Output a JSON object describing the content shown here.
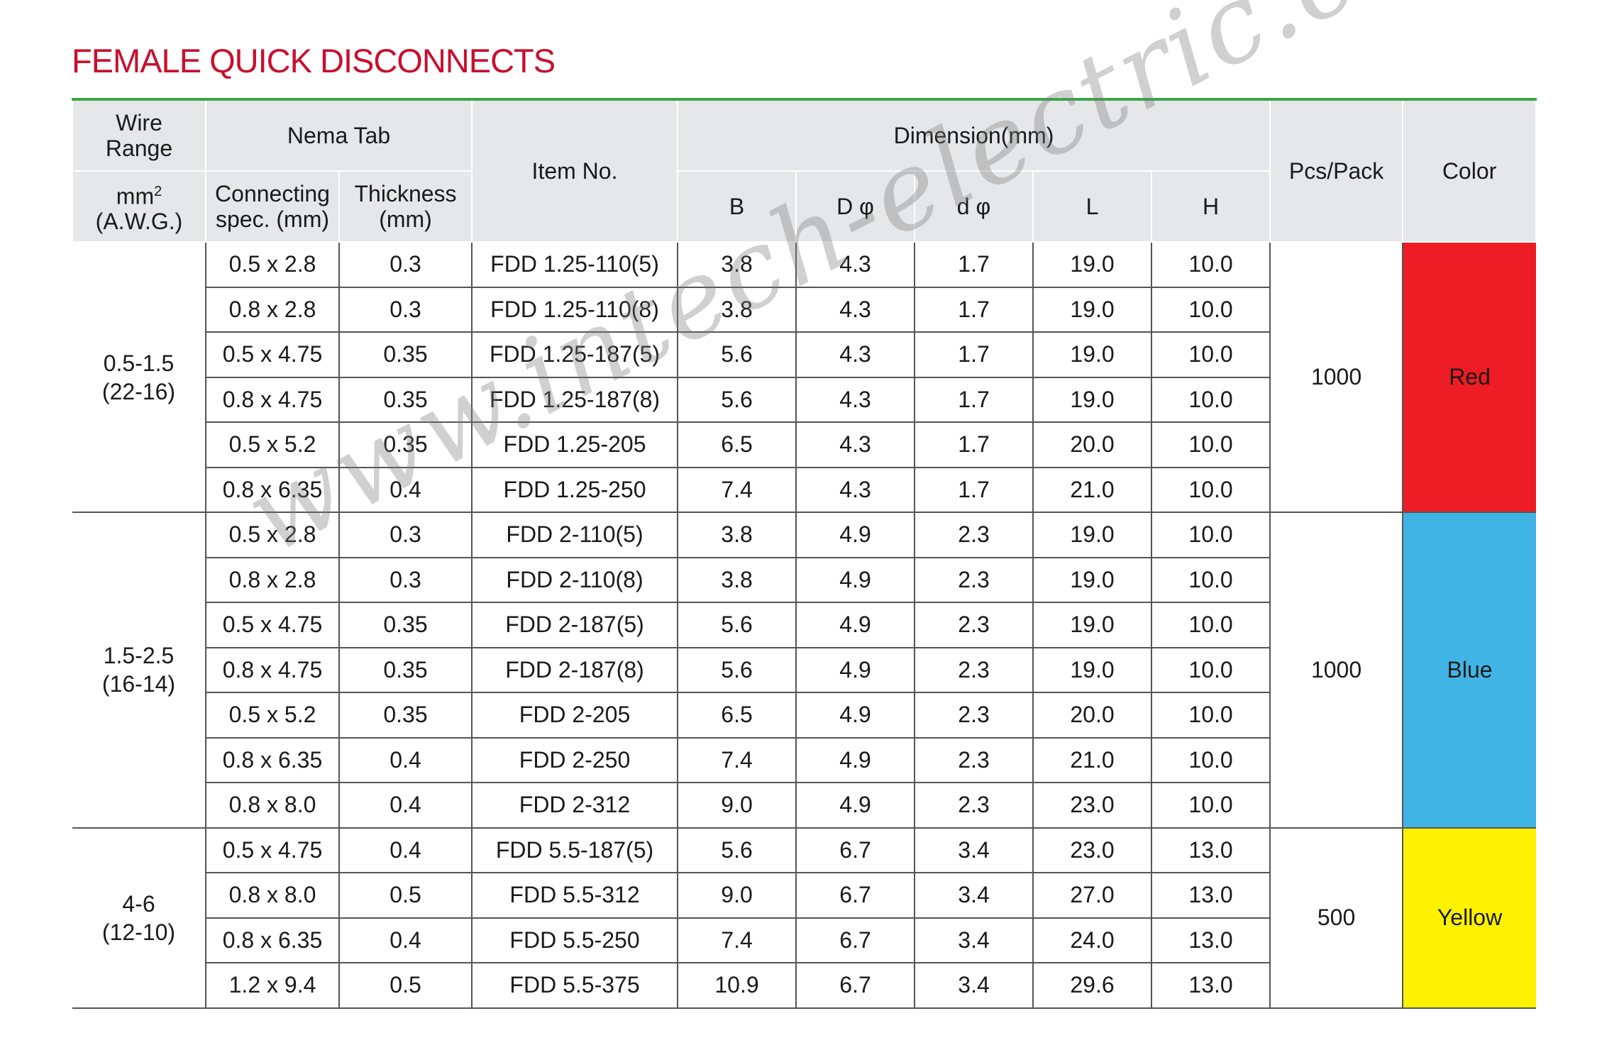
{
  "title": "FEMALE QUICK DISCONNECTS",
  "headers": {
    "wire_range": "Wire Range",
    "nema_tab": "Nema Tab",
    "item_no": "Item No.",
    "dimension": "Dimension(mm)",
    "pcs_pack": "Pcs/Pack",
    "color": "Color",
    "units_mm": "mm",
    "units_sup": "2",
    "units_awg": "(A.W.G.)",
    "connecting": "Connecting spec. (mm)",
    "thickness": "Thickness (mm)",
    "B": "B",
    "D": "D φ",
    "d": "d φ",
    "L": "L",
    "H": "H"
  },
  "groups": [
    {
      "wire_range": "0.5-1.5",
      "awg": "(22-16)",
      "pcs_pack": "1000",
      "color_label": "Red",
      "color_hex": "#ee1c25",
      "rows": [
        {
          "conn": "0.5 x 2.8",
          "thick": "0.3",
          "item": "FDD 1.25-110(5)",
          "B": "3.8",
          "D": "4.3",
          "d": "1.7",
          "L": "19.0",
          "H": "10.0"
        },
        {
          "conn": "0.8 x 2.8",
          "thick": "0.3",
          "item": "FDD 1.25-110(8)",
          "B": "3.8",
          "D": "4.3",
          "d": "1.7",
          "L": "19.0",
          "H": "10.0"
        },
        {
          "conn": "0.5 x 4.75",
          "thick": "0.35",
          "item": "FDD 1.25-187(5)",
          "B": "5.6",
          "D": "4.3",
          "d": "1.7",
          "L": "19.0",
          "H": "10.0"
        },
        {
          "conn": "0.8 x 4.75",
          "thick": "0.35",
          "item": "FDD 1.25-187(8)",
          "B": "5.6",
          "D": "4.3",
          "d": "1.7",
          "L": "19.0",
          "H": "10.0"
        },
        {
          "conn": "0.5 x 5.2",
          "thick": "0.35",
          "item": "FDD 1.25-205",
          "B": "6.5",
          "D": "4.3",
          "d": "1.7",
          "L": "20.0",
          "H": "10.0"
        },
        {
          "conn": "0.8 x 6.35",
          "thick": "0.4",
          "item": "FDD 1.25-250",
          "B": "7.4",
          "D": "4.3",
          "d": "1.7",
          "L": "21.0",
          "H": "10.0"
        }
      ]
    },
    {
      "wire_range": "1.5-2.5",
      "awg": "(16-14)",
      "pcs_pack": "1000",
      "color_label": "Blue",
      "color_hex": "#40b4e5",
      "rows": [
        {
          "conn": "0.5 x 2.8",
          "thick": "0.3",
          "item": "FDD 2-110(5)",
          "B": "3.8",
          "D": "4.9",
          "d": "2.3",
          "L": "19.0",
          "H": "10.0"
        },
        {
          "conn": "0.8 x 2.8",
          "thick": "0.3",
          "item": "FDD 2-110(8)",
          "B": "3.8",
          "D": "4.9",
          "d": "2.3",
          "L": "19.0",
          "H": "10.0"
        },
        {
          "conn": "0.5 x 4.75",
          "thick": "0.35",
          "item": "FDD 2-187(5)",
          "B": "5.6",
          "D": "4.9",
          "d": "2.3",
          "L": "19.0",
          "H": "10.0"
        },
        {
          "conn": "0.8 x 4.75",
          "thick": "0.35",
          "item": "FDD 2-187(8)",
          "B": "5.6",
          "D": "4.9",
          "d": "2.3",
          "L": "19.0",
          "H": "10.0"
        },
        {
          "conn": "0.5 x 5.2",
          "thick": "0.35",
          "item": "FDD 2-205",
          "B": "6.5",
          "D": "4.9",
          "d": "2.3",
          "L": "20.0",
          "H": "10.0"
        },
        {
          "conn": "0.8 x 6.35",
          "thick": "0.4",
          "item": "FDD 2-250",
          "B": "7.4",
          "D": "4.9",
          "d": "2.3",
          "L": "21.0",
          "H": "10.0"
        },
        {
          "conn": "0.8 x 8.0",
          "thick": "0.4",
          "item": "FDD 2-312",
          "B": "9.0",
          "D": "4.9",
          "d": "2.3",
          "L": "23.0",
          "H": "10.0"
        }
      ]
    },
    {
      "wire_range": "4-6",
      "awg": "(12-10)",
      "pcs_pack": "500",
      "color_label": "Yellow",
      "color_hex": "#fff200",
      "rows": [
        {
          "conn": "0.5 x 4.75",
          "thick": "0.4",
          "item": "FDD 5.5-187(5)",
          "B": "5.6",
          "D": "6.7",
          "d": "3.4",
          "L": "23.0",
          "H": "13.0"
        },
        {
          "conn": "0.8 x 8.0",
          "thick": "0.5",
          "item": "FDD 5.5-312",
          "B": "9.0",
          "D": "6.7",
          "d": "3.4",
          "L": "27.0",
          "H": "13.0"
        },
        {
          "conn": "0.8 x 6.35",
          "thick": "0.4",
          "item": "FDD 5.5-250",
          "B": "7.4",
          "D": "6.7",
          "d": "3.4",
          "L": "24.0",
          "H": "13.0"
        },
        {
          "conn": "1.2 x 9.4",
          "thick": "0.5",
          "item": "FDD 5.5-375",
          "B": "10.9",
          "D": "6.7",
          "d": "3.4",
          "L": "29.6",
          "H": "13.0"
        }
      ]
    }
  ],
  "watermark": "www.intech-electric.com.my"
}
